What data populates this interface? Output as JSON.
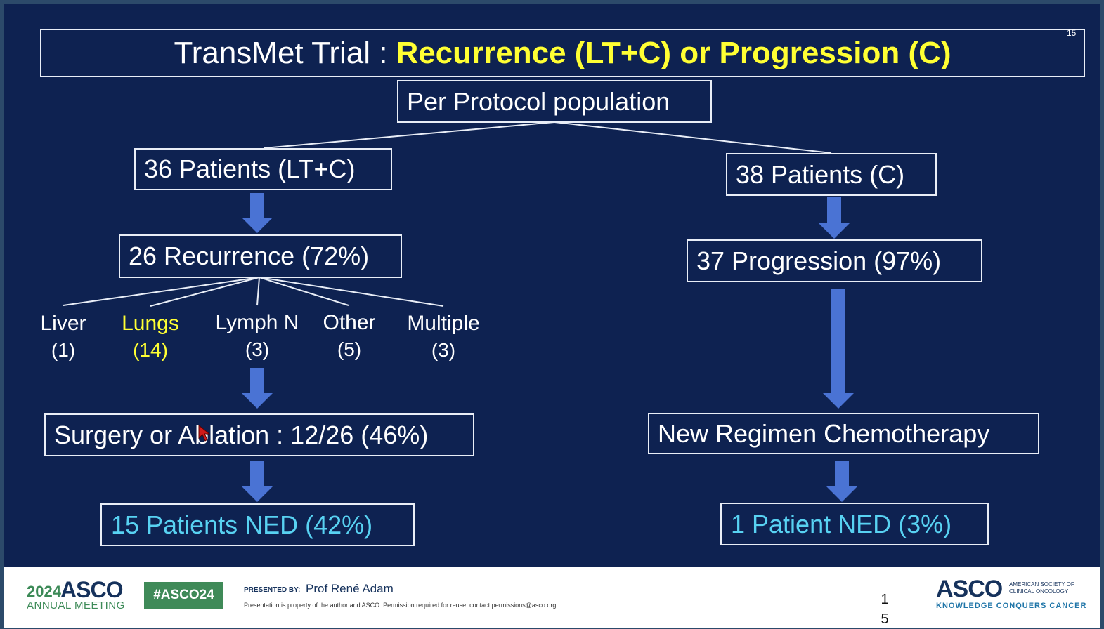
{
  "title": {
    "prefix": "TransMet Trial : ",
    "highlight": "Recurrence (LT+C) or Progression (C)"
  },
  "slide_number": "15",
  "colors": {
    "background": "#0e2251",
    "arrow": "#4a73d4",
    "highlight_yellow": "#ffff33",
    "cyan_text": "#58d2f2",
    "footer_green": "#3f8a58",
    "asco_navy": "#16325c"
  },
  "diagram": {
    "root": "Per Protocol population",
    "left": {
      "patients": "36 Patients (LT+C)",
      "recurrence": "26 Recurrence (72%)",
      "sites": [
        {
          "name": "Liver",
          "count": "(1)",
          "highlight": false
        },
        {
          "name": "Lungs",
          "count": "(14)",
          "highlight": true
        },
        {
          "name": "Lymph N",
          "count": "(3)",
          "highlight": false
        },
        {
          "name": "Other",
          "count": "(5)",
          "highlight": false
        },
        {
          "name": "Multiple",
          "count": "(3)",
          "highlight": false
        }
      ],
      "treatment": "Surgery or Ablation : 12/26 (46%)",
      "outcome": "15 Patients NED (42%)"
    },
    "right": {
      "patients": "38 Patients (C)",
      "progression": "37 Progression  (97%)",
      "treatment": "New Regimen Chemotherapy",
      "outcome": "1 Patient NED (3%)"
    }
  },
  "footer": {
    "year": "2024",
    "meeting_brand": "ASCO",
    "meeting_sub": "ANNUAL MEETING",
    "hashtag": "#ASCO24",
    "presented_by_label": "PRESENTED BY:",
    "presenter": "Prof René Adam",
    "notice": "Presentation is property of the author and ASCO. Permission required for reuse; contact permissions@asco.org.",
    "page_number": "1\n5",
    "org_logo": "ASCO",
    "org_name": "AMERICAN SOCIETY OF CLINICAL ONCOLOGY",
    "org_tagline": "KNOWLEDGE CONQUERS CANCER"
  }
}
